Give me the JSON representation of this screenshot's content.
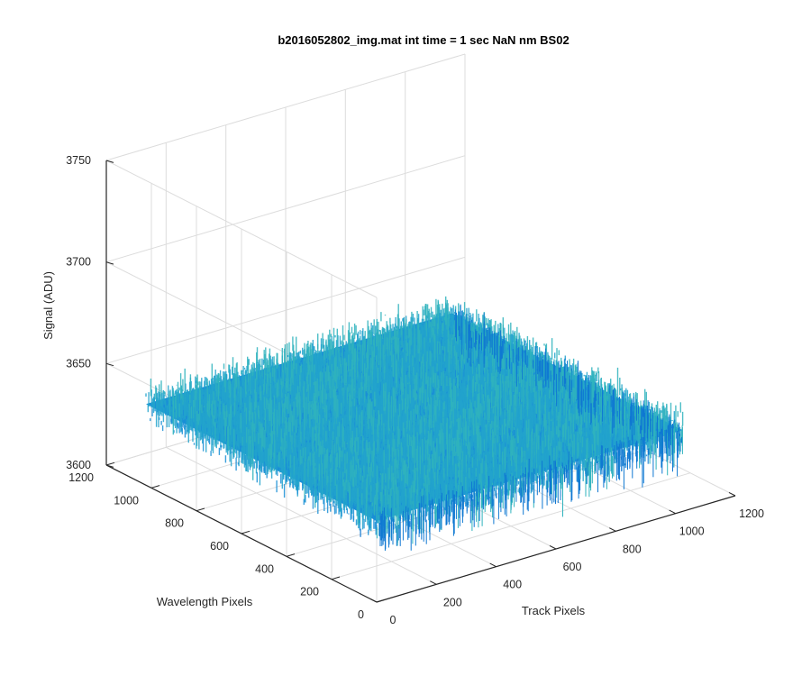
{
  "chart_data": {
    "type": "surface",
    "title": "b2016052802_img.mat int time = 1 sec  NaN nm BS02",
    "xlabel": "Track Pixels",
    "ylabel": "Wavelength Pixels",
    "zlabel": "Signal (ADU)",
    "xlim": [
      0,
      1200
    ],
    "ylim": [
      0,
      1200
    ],
    "zlim": [
      3600,
      3750
    ],
    "x_ticks": [
      "0",
      "200",
      "400",
      "600",
      "800",
      "1000",
      "1200"
    ],
    "y_ticks": [
      "0",
      "200",
      "400",
      "600",
      "800",
      "1000",
      "1200"
    ],
    "z_ticks": [
      "3600",
      "3650",
      "3700",
      "3750"
    ],
    "grid": true,
    "surface": {
      "x_range": [
        0,
        1024
      ],
      "y_range": [
        0,
        1024
      ],
      "mean": 3640,
      "spread_min": 3615,
      "spread_max": 3680,
      "colormap": "parula"
    }
  }
}
